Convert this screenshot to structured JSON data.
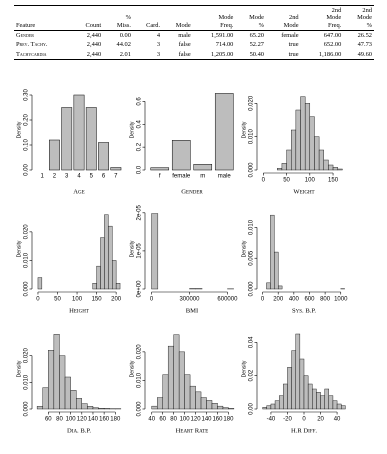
{
  "table": {
    "header": [
      [
        "Feature"
      ],
      [
        "Count"
      ],
      [
        "%",
        "Miss."
      ],
      [
        "Card."
      ],
      [
        "Mode"
      ],
      [
        "Mode",
        "Freq."
      ],
      [
        "Mode",
        "%"
      ],
      [
        "2nd",
        "Mode"
      ],
      [
        "2nd",
        "Mode",
        "Freq."
      ],
      [
        "2nd",
        "Mode",
        "%"
      ]
    ],
    "rows": [
      [
        "Gender",
        "2,440",
        "0.00",
        "4",
        "male",
        "1,591.00",
        "65.20",
        "female",
        "647.00",
        "26.52"
      ],
      [
        "Prev. Tachy.",
        "2,440",
        "44.02",
        "3",
        "false",
        "714.00",
        "52.27",
        "true",
        "652.00",
        "47.73"
      ],
      [
        "Tachycardia",
        "2,440",
        "2.01",
        "3",
        "false",
        "1,205.00",
        "50.40",
        "true",
        "1,186.00",
        "49.60"
      ]
    ]
  },
  "chart_data": [
    {
      "type": "bar",
      "xlabel": "Age",
      "ylabel": "Density",
      "color": "#bdbdbd",
      "categories": [
        "1",
        "2",
        "3",
        "4",
        "5",
        "6",
        "7"
      ],
      "values": [
        0,
        0.12,
        0.25,
        0.3,
        0.25,
        0.11,
        0.01
      ],
      "ylim": [
        0,
        0.32
      ],
      "yticks": [
        {
          "value": 0,
          "label": "0.00"
        },
        {
          "value": 0.1,
          "label": "0.10"
        },
        {
          "value": 0.2,
          "label": "0.20"
        },
        {
          "value": 0.3,
          "label": "0.30"
        }
      ]
    },
    {
      "type": "bar",
      "xlabel": "Gender",
      "ylabel": "Density",
      "color": "#bdbdbd",
      "categories": [
        "f",
        "female",
        "m",
        "male"
      ],
      "values": [
        0.02,
        0.26,
        0.05,
        0.67
      ],
      "ylim": [
        0,
        0.7
      ],
      "yticks": [
        {
          "value": 0,
          "label": "0.0"
        },
        {
          "value": 0.2,
          "label": "0.2"
        },
        {
          "value": 0.4,
          "label": "0.4"
        },
        {
          "value": 0.6,
          "label": "0.6"
        }
      ]
    },
    {
      "type": "histogram",
      "xlabel": "Weight",
      "ylabel": "Density",
      "color": "#bdbdbd",
      "bins": [
        30,
        40,
        50,
        60,
        70,
        80,
        90,
        100,
        110,
        120,
        130,
        140,
        150,
        160,
        170
      ],
      "values": [
        0.0005,
        0.002,
        0.006,
        0.012,
        0.018,
        0.022,
        0.02,
        0.016,
        0.01,
        0.006,
        0.003,
        0.0015,
        0.0008,
        0.0003
      ],
      "xlim": [
        -5,
        180
      ],
      "xticks": [
        0,
        50,
        100,
        150
      ],
      "ylim": [
        0,
        0.024
      ],
      "yticks": [
        {
          "value": 0,
          "label": "0.000"
        },
        {
          "value": 0.01,
          "label": "0.010"
        },
        {
          "value": 0.02,
          "label": "0.020"
        }
      ]
    },
    {
      "type": "histogram",
      "xlabel": "Height",
      "ylabel": "Density",
      "color": "#bdbdbd",
      "bins": [
        0,
        10,
        20,
        30,
        40,
        50,
        60,
        70,
        80,
        90,
        100,
        110,
        120,
        130,
        140,
        150,
        160,
        170,
        180,
        190,
        200,
        210
      ],
      "values": [
        0.004,
        0,
        0,
        0,
        0,
        0,
        0,
        0,
        0,
        0,
        0,
        0,
        0,
        0,
        0.002,
        0.008,
        0.018,
        0.026,
        0.022,
        0.01,
        0.002
      ],
      "xlim": [
        -5,
        215
      ],
      "xticks": [
        0,
        50,
        100,
        150,
        200
      ],
      "ylim": [
        0,
        0.028
      ],
      "yticks": [
        {
          "value": 0,
          "label": "0.000"
        },
        {
          "value": 0.01,
          "label": "0.010"
        },
        {
          "value": 0.02,
          "label": "0.020"
        }
      ]
    },
    {
      "type": "histogram",
      "xlabel": "BMI",
      "ylabel": "Density",
      "color": "#bdbdbd",
      "bins": [
        0,
        50000,
        100000,
        150000,
        200000,
        250000,
        300000,
        350000,
        400000,
        450000,
        500000,
        550000,
        600000,
        650000
      ],
      "values": [
        1.98e-05,
        0,
        0,
        0,
        0,
        0,
        1e-07,
        1e-07,
        0,
        0,
        0,
        0,
        5e-08
      ],
      "xlim": [
        -20000,
        660000
      ],
      "xticks": [
        0,
        300000,
        600000
      ],
      "ylim": [
        0,
        2.1e-05
      ],
      "yticks": [
        {
          "value": 0,
          "label": "0e+00"
        },
        {
          "value": 1e-05,
          "label": "1e-05"
        },
        {
          "value": 2e-05,
          "label": "2e-05"
        }
      ]
    },
    {
      "type": "histogram",
      "xlabel": "Sys. B.P.",
      "ylabel": "Density",
      "color": "#bdbdbd",
      "bins": [
        0,
        50,
        100,
        150,
        200,
        250,
        300,
        350,
        400,
        450,
        500,
        550,
        600,
        650,
        700,
        750,
        800,
        850,
        900,
        950,
        1000,
        1050
      ],
      "values": [
        0,
        0.001,
        0.012,
        0.006,
        0.0005,
        0,
        0,
        0,
        0,
        0,
        0,
        0,
        0,
        0,
        0,
        0,
        0,
        0,
        0,
        0,
        5e-05
      ],
      "xlim": [
        -20,
        1080
      ],
      "xticks": [
        0,
        200,
        400,
        600,
        800,
        1000
      ],
      "ylim": [
        0,
        0.013
      ],
      "yticks": [
        {
          "value": 0,
          "label": "0.000"
        },
        {
          "value": 0.005,
          "label": "0.005"
        },
        {
          "value": 0.01,
          "label": "0.010"
        }
      ]
    },
    {
      "type": "histogram",
      "xlabel": "Dia. B.P.",
      "ylabel": "Density",
      "color": "#bdbdbd",
      "bins": [
        40,
        50,
        60,
        70,
        80,
        90,
        100,
        110,
        120,
        130,
        140,
        150,
        160,
        170,
        180,
        190
      ],
      "values": [
        0.001,
        0.008,
        0.022,
        0.028,
        0.02,
        0.012,
        0.007,
        0.004,
        0.002,
        0.001,
        0.0005,
        0.0003,
        0.0002,
        0.0001,
        0.0001
      ],
      "xlim": [
        38,
        192
      ],
      "xticks": [
        60,
        80,
        100,
        120,
        140,
        160,
        180
      ],
      "ylim": [
        0,
        0.03
      ],
      "yticks": [
        {
          "value": 0,
          "label": "0.000"
        },
        {
          "value": 0.01,
          "label": "0.010"
        },
        {
          "value": 0.02,
          "label": "0.020"
        }
      ]
    },
    {
      "type": "histogram",
      "xlabel": "Heart Rate",
      "ylabel": "Density",
      "color": "#bdbdbd",
      "bins": [
        40,
        50,
        60,
        70,
        80,
        90,
        100,
        110,
        120,
        130,
        140,
        150,
        160,
        170,
        180,
        190
      ],
      "values": [
        0.001,
        0.004,
        0.012,
        0.022,
        0.026,
        0.02,
        0.012,
        0.008,
        0.006,
        0.004,
        0.003,
        0.002,
        0.001,
        0.0005,
        0.0002
      ],
      "xlim": [
        35,
        192
      ],
      "xticks": [
        40,
        60,
        80,
        100,
        120,
        140,
        160,
        180
      ],
      "ylim": [
        0,
        0.028
      ],
      "yticks": [
        {
          "value": 0,
          "label": "0.000"
        },
        {
          "value": 0.01,
          "label": "0.010"
        },
        {
          "value": 0.02,
          "label": "0.020"
        }
      ]
    },
    {
      "type": "histogram",
      "xlabel": "H.R Diff.",
      "ylabel": "Density",
      "color": "#bdbdbd",
      "bins": [
        -50,
        -45,
        -40,
        -35,
        -30,
        -25,
        -20,
        -15,
        -10,
        -5,
        0,
        5,
        10,
        15,
        20,
        25,
        30,
        35,
        40,
        45,
        50
      ],
      "values": [
        0.001,
        0.002,
        0.003,
        0.005,
        0.008,
        0.015,
        0.025,
        0.035,
        0.045,
        0.03,
        0.02,
        0.015,
        0.012,
        0.01,
        0.008,
        0.012,
        0.008,
        0.005,
        0.003,
        0.002
      ],
      "xlim": [
        -52,
        52
      ],
      "xticks": [
        -40,
        -20,
        0,
        20,
        40
      ],
      "ylim": [
        0,
        0.048
      ],
      "yticks": [
        {
          "value": 0,
          "label": "0.00"
        },
        {
          "value": 0.02,
          "label": "0.02"
        },
        {
          "value": 0.04,
          "label": "0.04"
        }
      ]
    }
  ]
}
